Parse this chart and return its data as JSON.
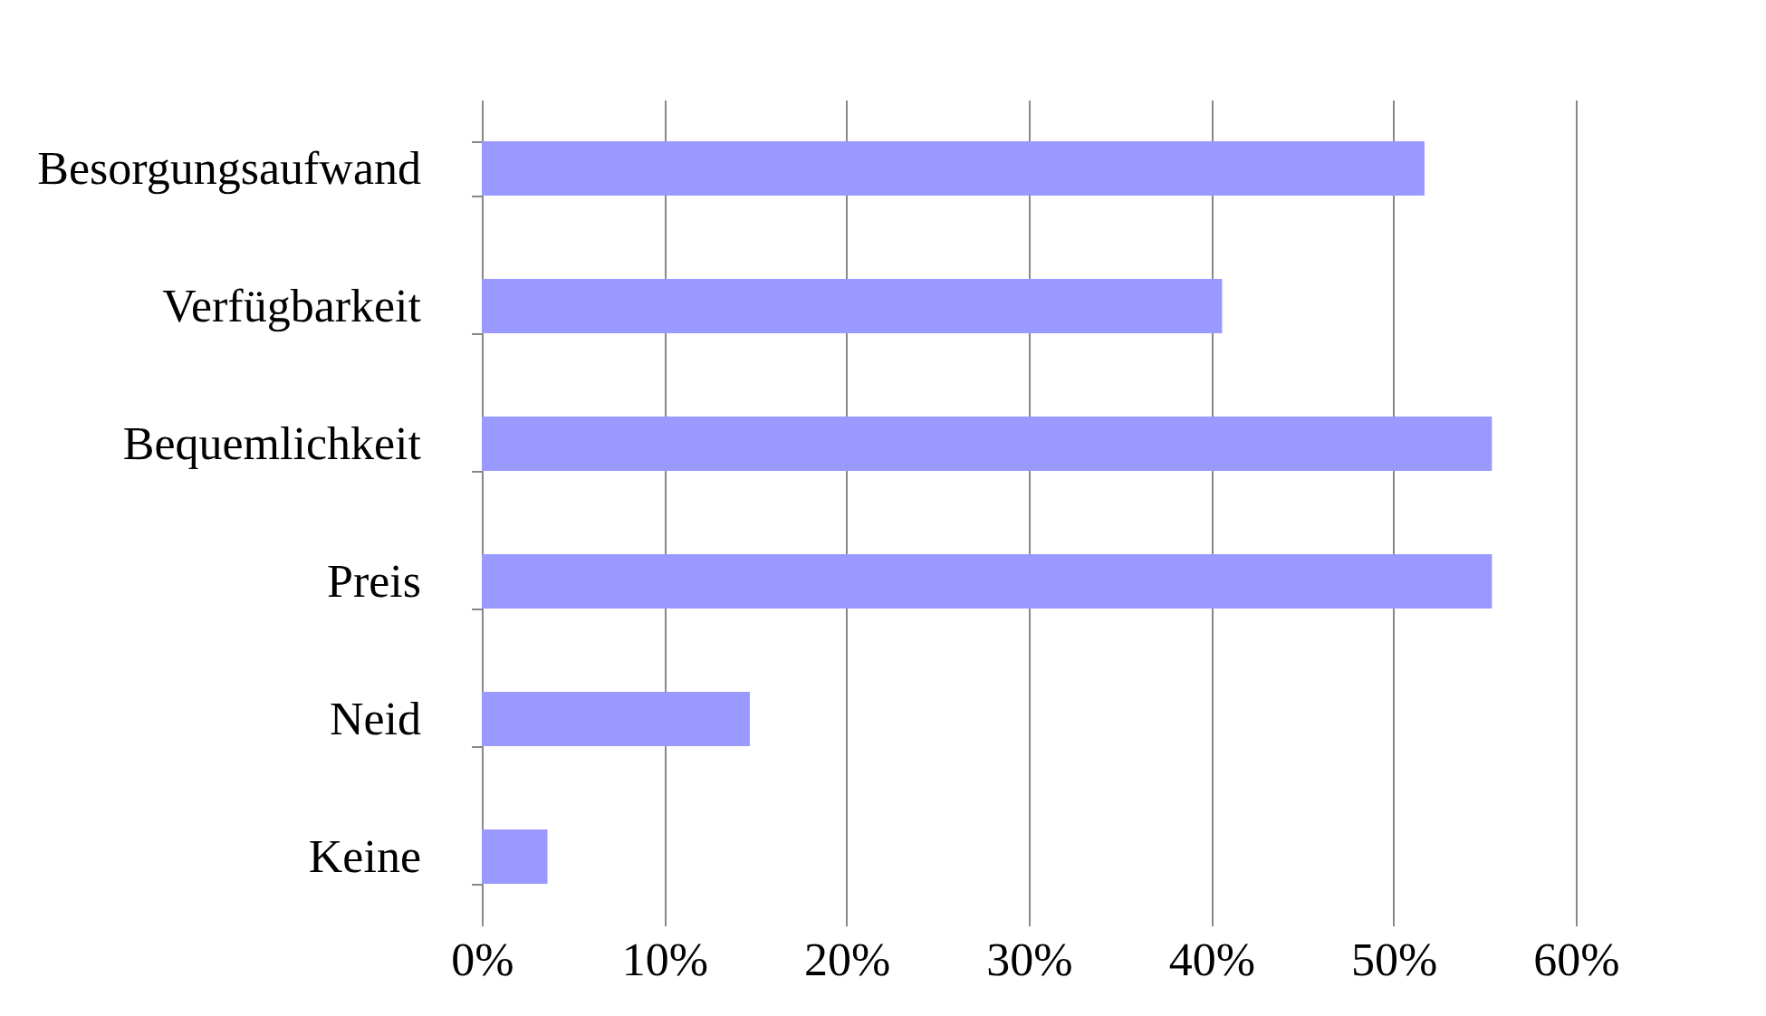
{
  "chart_data": {
    "type": "bar",
    "orientation": "horizontal",
    "categories": [
      "Besorgungsaufwand",
      "Verfügbarkeit",
      "Bequemlichkeit",
      "Preis",
      "Neid",
      "Keine"
    ],
    "values": [
      51.7,
      40.6,
      55.4,
      55.4,
      14.7,
      3.6
    ],
    "color": "#9999ff",
    "xlim": [
      0,
      60
    ],
    "xticks": [
      {
        "value": 0,
        "label": "0%"
      },
      {
        "value": 10,
        "label": "10%"
      },
      {
        "value": 20,
        "label": "20%"
      },
      {
        "value": 30,
        "label": "30%"
      },
      {
        "value": 40,
        "label": "40%"
      },
      {
        "value": 50,
        "label": "50%"
      },
      {
        "value": 60,
        "label": "60%"
      }
    ],
    "grid": "x"
  }
}
